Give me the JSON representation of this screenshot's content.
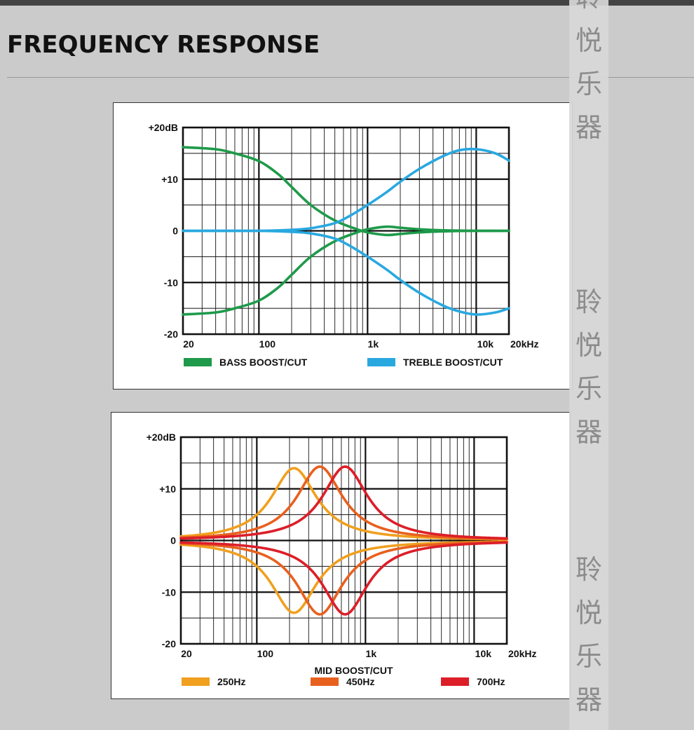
{
  "page": {
    "title": "FREQUENCY RESPONSE"
  },
  "watermark": {
    "text": "聆悦乐器"
  },
  "chart_data": [
    {
      "type": "line",
      "title": "",
      "xscale": "log",
      "xlim": [
        20,
        20000
      ],
      "ylim": [
        -20,
        20
      ],
      "x_tick_labels": [
        {
          "x": 20,
          "label": "20"
        },
        {
          "x": 100,
          "label": "100"
        },
        {
          "x": 1000,
          "label": "1k"
        },
        {
          "x": 10000,
          "label": "10k"
        },
        {
          "x": 20000,
          "label": "20kHz"
        }
      ],
      "y_tick_labels": [
        {
          "y": 20,
          "label": "+20dB"
        },
        {
          "y": 10,
          "label": "+10"
        },
        {
          "y": 0,
          "label": "0"
        },
        {
          "y": -10,
          "label": "-10"
        },
        {
          "y": -20,
          "label": "-20"
        }
      ],
      "grid": true,
      "xlabel": "",
      "legend": [
        {
          "name": "BASS BOOST/CUT",
          "color": "#1e9a4a"
        },
        {
          "name": "TREBLE BOOST/CUT",
          "color": "#29a8e0"
        }
      ],
      "series": [
        {
          "name": "BASS BOOST/CUT",
          "color": "#1e9a4a",
          "points": [
            [
              20,
              16.2
            ],
            [
              40,
              15.8
            ],
            [
              60,
              15
            ],
            [
              100,
              13.5
            ],
            [
              150,
              11
            ],
            [
              200,
              8.5
            ],
            [
              300,
              5
            ],
            [
              500,
              2
            ],
            [
              800,
              0.3
            ],
            [
              1000,
              -0.3
            ],
            [
              1500,
              -0.8
            ],
            [
              2000,
              -0.6
            ],
            [
              3000,
              -0.3
            ],
            [
              5000,
              -0.1
            ],
            [
              10000,
              0
            ],
            [
              20000,
              0
            ]
          ]
        },
        {
          "name": "BASS BOOST/CUT",
          "color": "#1e9a4a",
          "points": [
            [
              20,
              -16.2
            ],
            [
              40,
              -15.8
            ],
            [
              60,
              -15
            ],
            [
              100,
              -13.5
            ],
            [
              150,
              -11
            ],
            [
              200,
              -8.5
            ],
            [
              300,
              -5
            ],
            [
              500,
              -2
            ],
            [
              800,
              -0.3
            ],
            [
              1000,
              0.3
            ],
            [
              1500,
              0.8
            ],
            [
              2000,
              0.6
            ],
            [
              3000,
              0.3
            ],
            [
              5000,
              0.1
            ],
            [
              10000,
              0
            ],
            [
              20000,
              0
            ]
          ]
        },
        {
          "name": "TREBLE BOOST/CUT",
          "color": "#29a8e0",
          "points": [
            [
              20,
              0
            ],
            [
              100,
              0
            ],
            [
              200,
              0.2
            ],
            [
              300,
              0.5
            ],
            [
              500,
              1.5
            ],
            [
              700,
              3
            ],
            [
              1000,
              5
            ],
            [
              1500,
              7.5
            ],
            [
              2000,
              9.5
            ],
            [
              3000,
              12
            ],
            [
              5000,
              14.5
            ],
            [
              7000,
              15.6
            ],
            [
              10000,
              15.8
            ],
            [
              15000,
              15
            ],
            [
              20000,
              13.6
            ]
          ]
        },
        {
          "name": "TREBLE BOOST/CUT",
          "color": "#29a8e0",
          "points": [
            [
              20,
              0
            ],
            [
              100,
              0
            ],
            [
              200,
              -0.2
            ],
            [
              300,
              -0.5
            ],
            [
              500,
              -1.5
            ],
            [
              700,
              -3
            ],
            [
              1000,
              -5
            ],
            [
              1500,
              -7.5
            ],
            [
              2000,
              -9.5
            ],
            [
              3000,
              -12
            ],
            [
              5000,
              -14.5
            ],
            [
              7000,
              -15.6
            ],
            [
              10000,
              -16.2
            ],
            [
              15000,
              -15.8
            ],
            [
              20000,
              -15
            ]
          ]
        }
      ]
    },
    {
      "type": "line",
      "title": "",
      "xscale": "log",
      "xlim": [
        20,
        20000
      ],
      "ylim": [
        -20,
        20
      ],
      "x_tick_labels": [
        {
          "x": 20,
          "label": "20"
        },
        {
          "x": 100,
          "label": "100"
        },
        {
          "x": 1000,
          "label": "1k"
        },
        {
          "x": 10000,
          "label": "10k"
        },
        {
          "x": 20000,
          "label": "20kHz"
        }
      ],
      "y_tick_labels": [
        {
          "y": 20,
          "label": "+20dB"
        },
        {
          "y": 10,
          "label": "+10"
        },
        {
          "y": 0,
          "label": "0"
        },
        {
          "y": -10,
          "label": "-10"
        },
        {
          "y": -20,
          "label": "-20"
        }
      ],
      "grid": true,
      "xlabel": "MID BOOST/CUT",
      "legend": [
        {
          "name": "250Hz",
          "color": "#f0a01e"
        },
        {
          "name": "450Hz",
          "color": "#e8601e"
        },
        {
          "name": "700Hz",
          "color": "#dc1e28"
        }
      ],
      "series": [
        {
          "name": "250Hz",
          "color": "#f0a01e",
          "center": 220,
          "gain": 14,
          "q_octaves": 1.45
        },
        {
          "name": "250Hz",
          "color": "#f0a01e",
          "center": 220,
          "gain": -14,
          "q_octaves": 1.45
        },
        {
          "name": "450Hz",
          "color": "#e8601e",
          "center": 380,
          "gain": 14.3,
          "q_octaves": 1.45
        },
        {
          "name": "450Hz",
          "color": "#e8601e",
          "center": 380,
          "gain": -14.3,
          "q_octaves": 1.45
        },
        {
          "name": "700Hz",
          "color": "#dc1e28",
          "center": 650,
          "gain": 14.3,
          "q_octaves": 1.45
        },
        {
          "name": "700Hz",
          "color": "#dc1e28",
          "center": 650,
          "gain": -14.3,
          "q_octaves": 1.45
        }
      ]
    }
  ]
}
